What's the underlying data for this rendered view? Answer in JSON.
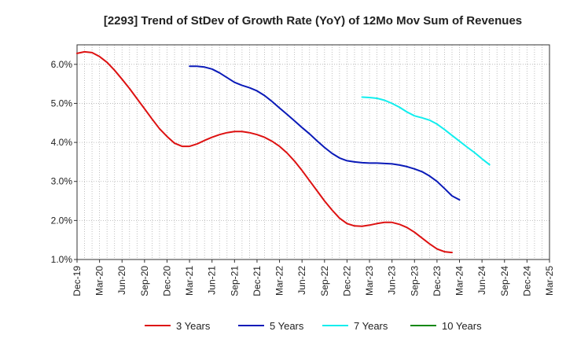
{
  "chart_data": {
    "type": "line",
    "title": "[2293]  Trend of StDev of Growth Rate (YoY) of 12Mo Mov Sum of Revenues",
    "xlabel": "",
    "ylabel": "",
    "ylim": [
      1.0,
      6.5
    ],
    "yticks": [
      1.0,
      2.0,
      3.0,
      4.0,
      5.0,
      6.0
    ],
    "ytick_labels": [
      "1.0%",
      "2.0%",
      "3.0%",
      "4.0%",
      "5.0%",
      "6.0%"
    ],
    "x_range": [
      0,
      63
    ],
    "xticks": [
      0,
      3,
      6,
      9,
      12,
      15,
      18,
      21,
      24,
      27,
      30,
      33,
      36,
      39,
      42,
      45,
      48,
      51,
      54,
      57,
      60,
      63
    ],
    "xtick_labels": [
      "Dec-19",
      "Mar-20",
      "Jun-20",
      "Sep-20",
      "Dec-20",
      "Mar-21",
      "Jun-21",
      "Sep-21",
      "Dec-21",
      "Mar-22",
      "Jun-22",
      "Sep-22",
      "Dec-22",
      "Mar-23",
      "Jun-23",
      "Sep-23",
      "Dec-23",
      "Mar-24",
      "Jun-24",
      "Sep-24",
      "Dec-24",
      "Mar-25"
    ],
    "grid": true,
    "legend_position": "bottom",
    "series": [
      {
        "name": "3 Years",
        "color": "#dd1111",
        "points": [
          [
            0,
            6.28
          ],
          [
            1,
            6.32
          ],
          [
            2,
            6.3
          ],
          [
            3,
            6.2
          ],
          [
            4,
            6.05
          ],
          [
            5,
            5.85
          ],
          [
            6,
            5.62
          ],
          [
            7,
            5.38
          ],
          [
            8,
            5.12
          ],
          [
            9,
            4.86
          ],
          [
            10,
            4.6
          ],
          [
            11,
            4.35
          ],
          [
            12,
            4.15
          ],
          [
            13,
            3.98
          ],
          [
            14,
            3.9
          ],
          [
            15,
            3.9
          ],
          [
            16,
            3.96
          ],
          [
            17,
            4.05
          ],
          [
            18,
            4.13
          ],
          [
            19,
            4.2
          ],
          [
            20,
            4.25
          ],
          [
            21,
            4.28
          ],
          [
            22,
            4.28
          ],
          [
            23,
            4.25
          ],
          [
            24,
            4.2
          ],
          [
            25,
            4.13
          ],
          [
            26,
            4.03
          ],
          [
            27,
            3.9
          ],
          [
            28,
            3.73
          ],
          [
            29,
            3.52
          ],
          [
            30,
            3.28
          ],
          [
            31,
            3.02
          ],
          [
            32,
            2.76
          ],
          [
            33,
            2.5
          ],
          [
            34,
            2.27
          ],
          [
            35,
            2.06
          ],
          [
            36,
            1.92
          ],
          [
            37,
            1.86
          ],
          [
            38,
            1.85
          ],
          [
            39,
            1.88
          ],
          [
            40,
            1.92
          ],
          [
            41,
            1.95
          ],
          [
            42,
            1.95
          ],
          [
            43,
            1.9
          ],
          [
            44,
            1.82
          ],
          [
            45,
            1.7
          ],
          [
            46,
            1.55
          ],
          [
            47,
            1.4
          ],
          [
            48,
            1.27
          ],
          [
            49,
            1.2
          ],
          [
            50,
            1.18
          ]
        ]
      },
      {
        "name": "5 Years",
        "color": "#0a1ab8",
        "points": [
          [
            15,
            5.95
          ],
          [
            16,
            5.95
          ],
          [
            17,
            5.93
          ],
          [
            18,
            5.88
          ],
          [
            19,
            5.78
          ],
          [
            20,
            5.66
          ],
          [
            21,
            5.54
          ],
          [
            22,
            5.46
          ],
          [
            23,
            5.4
          ],
          [
            24,
            5.32
          ],
          [
            25,
            5.2
          ],
          [
            26,
            5.05
          ],
          [
            27,
            4.88
          ],
          [
            28,
            4.72
          ],
          [
            29,
            4.55
          ],
          [
            30,
            4.38
          ],
          [
            31,
            4.22
          ],
          [
            32,
            4.04
          ],
          [
            33,
            3.87
          ],
          [
            34,
            3.72
          ],
          [
            35,
            3.6
          ],
          [
            36,
            3.53
          ],
          [
            37,
            3.5
          ],
          [
            38,
            3.48
          ],
          [
            39,
            3.47
          ],
          [
            40,
            3.47
          ],
          [
            41,
            3.46
          ],
          [
            42,
            3.45
          ],
          [
            43,
            3.42
          ],
          [
            44,
            3.38
          ],
          [
            45,
            3.32
          ],
          [
            46,
            3.25
          ],
          [
            47,
            3.14
          ],
          [
            48,
            3.0
          ],
          [
            49,
            2.82
          ],
          [
            50,
            2.63
          ],
          [
            51,
            2.53
          ]
        ]
      },
      {
        "name": "7 Years",
        "color": "#11eeee",
        "points": [
          [
            38,
            5.16
          ],
          [
            39,
            5.15
          ],
          [
            40,
            5.13
          ],
          [
            41,
            5.08
          ],
          [
            42,
            5.0
          ],
          [
            43,
            4.9
          ],
          [
            44,
            4.78
          ],
          [
            45,
            4.68
          ],
          [
            46,
            4.63
          ],
          [
            47,
            4.57
          ],
          [
            48,
            4.47
          ],
          [
            49,
            4.33
          ],
          [
            50,
            4.18
          ],
          [
            51,
            4.03
          ],
          [
            52,
            3.88
          ],
          [
            53,
            3.74
          ],
          [
            54,
            3.58
          ],
          [
            55,
            3.43
          ]
        ]
      },
      {
        "name": "10 Years",
        "color": "#118811",
        "points": []
      }
    ]
  }
}
